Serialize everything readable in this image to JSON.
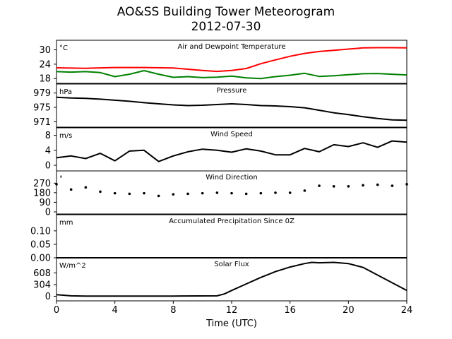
{
  "figure": {
    "title": "AO&SS Building Tower Meteorogram",
    "subtitle": "2012-07-30"
  },
  "chart_data": [
    {
      "type": "line",
      "title": "Air and Dewpoint Temperature",
      "ylabel": "°C",
      "xlim": [
        0,
        24
      ],
      "ylim": [
        16,
        34
      ],
      "yticks": [
        18,
        24,
        30
      ],
      "series": [
        {
          "color": "#ff0000",
          "x": [
            0,
            2,
            4,
            6,
            8,
            10,
            11,
            12,
            13,
            14,
            15,
            16,
            17,
            18,
            19,
            20,
            21,
            22,
            23,
            24
          ],
          "values": [
            22.5,
            22.3,
            22.6,
            22.6,
            22.4,
            21.4,
            21.0,
            21.4,
            22.2,
            24.2,
            25.8,
            27.3,
            28.5,
            29.3,
            29.8,
            30.3,
            30.8,
            30.9,
            30.9,
            30.8
          ]
        },
        {
          "color": "#008000",
          "x": [
            0,
            1,
            2,
            3,
            4,
            5,
            6,
            7,
            8,
            9,
            10,
            11,
            12,
            13,
            14,
            15,
            16,
            17,
            18,
            19,
            20,
            21,
            22,
            23,
            24
          ],
          "values": [
            20.9,
            20.7,
            20.9,
            20.5,
            18.8,
            19.8,
            21.3,
            19.8,
            18.5,
            18.8,
            18.4,
            18.6,
            19.0,
            18.3,
            18.0,
            18.8,
            19.4,
            20.2,
            18.9,
            19.2,
            19.6,
            20.0,
            20.1,
            19.8,
            19.5
          ]
        }
      ]
    },
    {
      "type": "line",
      "title": "Pressure",
      "ylabel": "hPa",
      "xlim": [
        0,
        24
      ],
      "ylim": [
        969.5,
        981.5
      ],
      "yticks": [
        971,
        975,
        979
      ],
      "series": [
        {
          "color": "#000000",
          "x": [
            0,
            1,
            2,
            3,
            4,
            5,
            6,
            7,
            8,
            9,
            10,
            11,
            12,
            13,
            14,
            15,
            16,
            17,
            18,
            19,
            20,
            21,
            22,
            23,
            24
          ],
          "values": [
            977.8,
            977.6,
            977.5,
            977.3,
            977.0,
            976.7,
            976.3,
            976.0,
            975.7,
            975.5,
            975.6,
            975.8,
            976.0,
            975.8,
            975.5,
            975.4,
            975.2,
            974.9,
            974.2,
            973.5,
            973.0,
            972.4,
            971.9,
            971.5,
            971.4
          ]
        }
      ]
    },
    {
      "type": "line",
      "title": "Wind Speed",
      "ylabel": "m/s",
      "xlim": [
        0,
        24
      ],
      "ylim": [
        -1.5,
        10
      ],
      "yticks": [
        0,
        4,
        8
      ],
      "series": [
        {
          "color": "#000000",
          "x": [
            0,
            1,
            2,
            3,
            4,
            5,
            6,
            7,
            8,
            9,
            10,
            11,
            12,
            13,
            14,
            15,
            16,
            17,
            18,
            19,
            20,
            21,
            22,
            23,
            24
          ],
          "values": [
            2.0,
            2.5,
            1.8,
            3.2,
            1.2,
            3.8,
            4.0,
            1.0,
            2.5,
            3.6,
            4.3,
            4.0,
            3.5,
            4.4,
            3.8,
            2.8,
            2.8,
            4.5,
            3.6,
            5.5,
            5.0,
            6.0,
            4.8,
            6.5,
            6.2
          ]
        }
      ]
    },
    {
      "type": "scatter",
      "title": "Wind Direction",
      "ylabel": "°",
      "xlim": [
        0,
        24
      ],
      "ylim": [
        -20,
        385
      ],
      "yticks": [
        0,
        90,
        180,
        270
      ],
      "series": [
        {
          "color": "#000000",
          "x": [
            0,
            1,
            2,
            3,
            4,
            5,
            6,
            7,
            8,
            9,
            10,
            11,
            12,
            13,
            14,
            15,
            16,
            17,
            18,
            19,
            20,
            21,
            22,
            23,
            24
          ],
          "values": [
            260,
            210,
            230,
            190,
            175,
            170,
            175,
            150,
            165,
            170,
            175,
            180,
            175,
            170,
            175,
            180,
            180,
            200,
            245,
            240,
            240,
            250,
            255,
            245,
            260
          ]
        }
      ]
    },
    {
      "type": "line",
      "title": "Accumulated Precipitation Since 0Z",
      "ylabel": "mm",
      "xlim": [
        0,
        24
      ],
      "ylim": [
        0,
        0.16
      ],
      "yticks": [
        0.0,
        0.05,
        0.1
      ],
      "yticklabels": [
        "0.00",
        "0.05",
        "0.10"
      ],
      "series": [
        {
          "color": "#000000",
          "x": [
            0,
            24
          ],
          "values": [
            0,
            0
          ]
        }
      ]
    },
    {
      "type": "line",
      "title": "Solar Flux",
      "ylabel": "W/m^2",
      "xlim": [
        0,
        24
      ],
      "ylim": [
        -120,
        1000
      ],
      "yticks": [
        0,
        304,
        608
      ],
      "series": [
        {
          "color": "#000000",
          "x": [
            0,
            1,
            2,
            4,
            8,
            11,
            11.5,
            12,
            13,
            14,
            15,
            16,
            17,
            17.5,
            18,
            19,
            20,
            21,
            22,
            23,
            24
          ],
          "values": [
            40,
            10,
            5,
            5,
            5,
            10,
            60,
            150,
            320,
            490,
            640,
            760,
            850,
            880,
            870,
            880,
            850,
            750,
            550,
            350,
            150
          ]
        }
      ]
    }
  ],
  "x_axis": {
    "label": "Time (UTC)",
    "ticks": [
      0,
      4,
      8,
      12,
      16,
      20,
      24
    ]
  }
}
